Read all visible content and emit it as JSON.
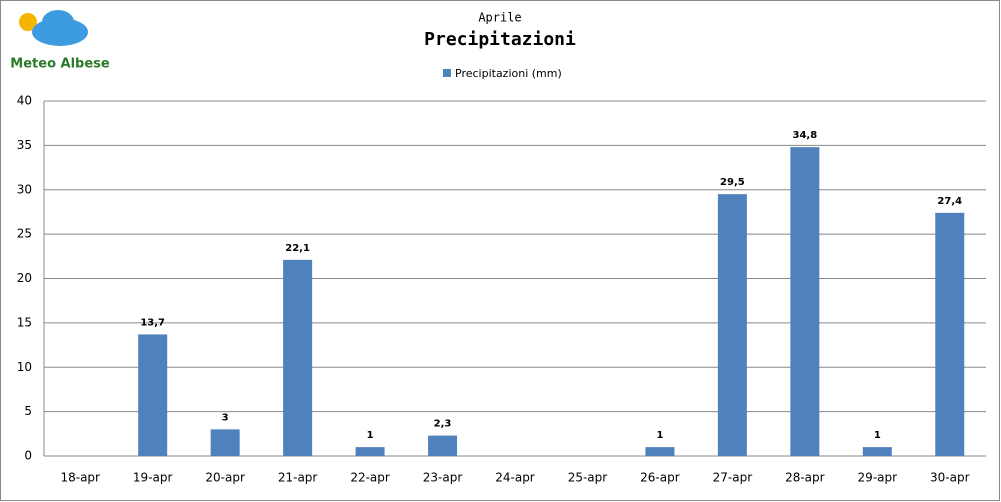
{
  "logo": {
    "text": "Meteo Albese"
  },
  "chart_data": {
    "type": "bar",
    "subtitle": "Aprile",
    "title": "Precipitazioni",
    "categories": [
      "18-apr",
      "19-apr",
      "20-apr",
      "21-apr",
      "22-apr",
      "23-apr",
      "24-apr",
      "25-apr",
      "26-apr",
      "27-apr",
      "28-apr",
      "29-apr",
      "30-apr"
    ],
    "series": [
      {
        "name": "Precipitazioni (mm)",
        "color": "#4f81bd",
        "values": [
          0,
          13.7,
          3,
          22.1,
          1,
          2.3,
          0,
          0,
          1,
          29.5,
          34.8,
          1,
          27.4
        ],
        "value_labels": [
          null,
          "13,7",
          "3",
          "22,1",
          "1",
          "2,3",
          null,
          null,
          "1",
          "29,5",
          "34,8",
          "1",
          "27,4"
        ]
      }
    ],
    "ylim": [
      0,
      40
    ],
    "yticks": [
      0,
      5,
      10,
      15,
      20,
      25,
      30,
      35,
      40
    ],
    "grid": true,
    "legend": "top"
  }
}
